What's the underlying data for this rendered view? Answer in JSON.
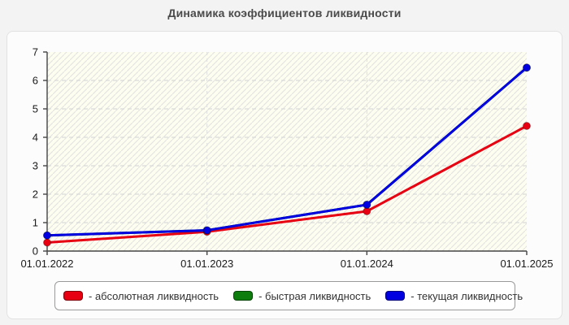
{
  "title": "Динамика коэффициентов ликвидности",
  "colors": {
    "red": "#e60011",
    "green": "#0d7d0d",
    "blue": "#0000e0",
    "axis": "#444444",
    "grid_h": "#d4d4d4",
    "grid_v": "#dddddd",
    "plot_bg": "#fdfdf0",
    "hatch": "rgba(160,160,190,0.30)",
    "tick_text": "#1a1a1a"
  },
  "legend": {
    "items": [
      {
        "label": "- абсолютная ликвидность",
        "color": "#e60011"
      },
      {
        "label": "- быстрая ликвидность",
        "color": "#0d7d0d"
      },
      {
        "label": "- текущая ликвидность",
        "color": "#0000e0"
      }
    ]
  },
  "chart_data": {
    "type": "line",
    "title": "Динамика коэффициентов ликвидности",
    "categories": [
      "01.01.2022",
      "01.01.2023",
      "01.01.2024",
      "01.01.2025"
    ],
    "series": [
      {
        "name": "абсолютная ликвидность",
        "color": "#e60011",
        "values": [
          0.3,
          0.68,
          1.4,
          4.4
        ]
      },
      {
        "name": "быстрая ликвидность",
        "color": "#0d7d0d",
        "values": [
          0.55,
          0.73,
          1.63,
          6.45
        ]
      },
      {
        "name": "текущая ликвидность",
        "color": "#0000e0",
        "values": [
          0.55,
          0.73,
          1.63,
          6.45
        ]
      }
    ],
    "xlabel": "",
    "ylabel": "",
    "ylim": [
      0,
      7
    ],
    "yticks": [
      0,
      1,
      2,
      3,
      4,
      5,
      6,
      7
    ],
    "grid": true,
    "legend_position": "bottom"
  }
}
